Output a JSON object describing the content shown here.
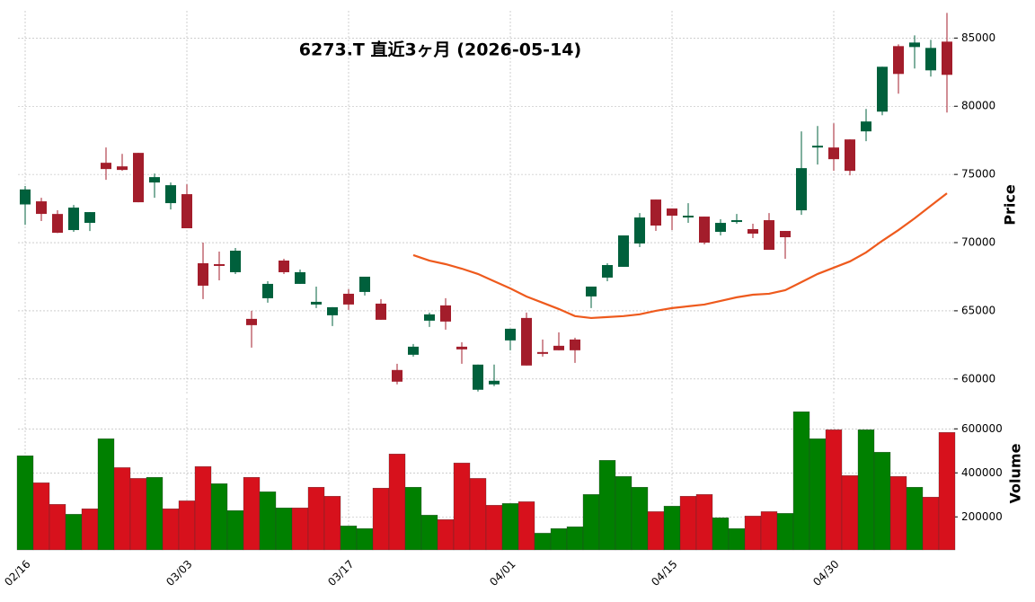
{
  "chart_data": {
    "type": "candlestick",
    "title": "6273.T  直近3ヶ月  (2026-05-14)",
    "categories": [
      "02/16",
      null,
      null,
      null,
      null,
      null,
      null,
      null,
      null,
      null,
      "03/03",
      null,
      null,
      null,
      null,
      null,
      null,
      null,
      null,
      null,
      "03/17",
      null,
      null,
      null,
      null,
      null,
      null,
      null,
      null,
      null,
      "04/01",
      null,
      null,
      null,
      null,
      null,
      null,
      null,
      null,
      null,
      "04/15",
      null,
      null,
      null,
      null,
      null,
      null,
      null,
      null,
      null,
      "04/30",
      null,
      null,
      null,
      null,
      null,
      null,
      null
    ],
    "open": [
      72800,
      73026,
      72100,
      70921,
      71447,
      75855,
      75590,
      76580,
      74408,
      72895,
      73553,
      68487,
      68420,
      67829,
      64408,
      65921,
      68684,
      66974,
      65461,
      64671,
      66250,
      66382,
      65526,
      60658,
      61776,
      64276,
      65395,
      62368,
      59211,
      59605,
      62829,
      64474,
      61974,
      62434,
      62895,
      66053,
      67434,
      68224,
      69934,
      73158,
      72500,
      71842,
      71908,
      70789,
      71513,
      70987,
      71645,
      70855,
      72368,
      76974,
      76974,
      77566,
      78158,
      79605,
      84408,
      84342,
      82632,
      84737
    ],
    "high": [
      74150,
      73290,
      72370,
      72760,
      72240,
      76974,
      76510,
      76580,
      75066,
      74408,
      74276,
      70000,
      69340,
      69605,
      65000,
      67171,
      68816,
      68026,
      66776,
      65263,
      66579,
      67500,
      65855,
      61118,
      62566,
      64868,
      65921,
      62697,
      61053,
      61053,
      63684,
      64868,
      62895,
      63421,
      63026,
      66776,
      68487,
      70526,
      72171,
      73158,
      72500,
      72895,
      71908,
      71711,
      72105,
      71382,
      72171,
      70855,
      78158,
      78553,
      78750,
      77566,
      79803,
      82895,
      84539,
      85197,
      84868,
      86842
    ],
    "low": [
      71300,
      71579,
      70700,
      70790,
      70850,
      74605,
      75263,
      72960,
      73290,
      72434,
      71053,
      65855,
      67237,
      67697,
      62303,
      65592,
      67697,
      66974,
      65197,
      63882,
      65066,
      66118,
      64342,
      59605,
      61645,
      63816,
      63618,
      61118,
      59079,
      59474,
      62105,
      60987,
      61645,
      62105,
      61184,
      65197,
      67171,
      68224,
      69671,
      70855,
      70921,
      71447,
      69868,
      70526,
      71382,
      70329,
      69474,
      68816,
      72039,
      75724,
      75263,
      74934,
      77434,
      79342,
      80921,
      82763,
      82171,
      79539
    ],
    "close": [
      73900,
      72105,
      70720,
      72566,
      72237,
      75395,
      75330,
      72960,
      74803,
      74210,
      71053,
      66842,
      68290,
      69408,
      63947,
      66974,
      67829,
      67829,
      65658,
      65263,
      65461,
      67500,
      64342,
      59803,
      62368,
      64737,
      64211,
      62171,
      61053,
      59868,
      63684,
      60987,
      61842,
      62105,
      62105,
      66776,
      68355,
      70526,
      71842,
      71250,
      71974,
      71974,
      70000,
      71447,
      71645,
      70658,
      69474,
      70395,
      75461,
      77105,
      76118,
      75263,
      78882,
      82895,
      82368,
      84671,
      84276,
      82303
    ],
    "up_color": "#00603c",
    "down_color": "#a31d2b",
    "ylabel": "Price",
    "ylim": [
      58800,
      87000
    ],
    "yticks": [
      60000,
      65000,
      70000,
      75000,
      80000,
      85000
    ],
    "grid": true,
    "moving_average": {
      "color": "#ee5a1d",
      "values": [
        null,
        null,
        null,
        null,
        null,
        null,
        null,
        null,
        null,
        null,
        null,
        null,
        null,
        null,
        null,
        null,
        null,
        null,
        null,
        null,
        null,
        null,
        null,
        null,
        69080,
        68680,
        68420,
        68090,
        67700,
        67170,
        66640,
        66050,
        65590,
        65130,
        64610,
        64470,
        64540,
        64610,
        64740,
        65000,
        65200,
        65330,
        65460,
        65720,
        65990,
        66180,
        66250,
        66510,
        67100,
        67700,
        68160,
        68620,
        69280,
        70130,
        70920,
        71780,
        72700,
        73620
      ]
    },
    "volume": {
      "ylabel": "Volume",
      "ylim": [
        50000,
        740000
      ],
      "yticks": [
        200000,
        400000,
        600000
      ],
      "values": [
        478000,
        355000,
        257000,
        212000,
        237000,
        555000,
        424000,
        375000,
        380000,
        237000,
        273000,
        429000,
        351000,
        229000,
        380000,
        314000,
        241000,
        241000,
        335000,
        294000,
        159000,
        147000,
        331000,
        486000,
        335000,
        208000,
        188000,
        445000,
        375000,
        253000,
        261000,
        269000,
        126000,
        147000,
        155000,
        302000,
        457000,
        384000,
        335000,
        224000,
        249000,
        294000,
        302000,
        196000,
        147000,
        204000,
        224000,
        216000,
        678000,
        555000,
        596000,
        388000,
        596000,
        494000,
        384000,
        335000,
        290000,
        584000
      ],
      "colors": [
        "#008000",
        "#d7111c",
        "#d7111c",
        "#008000",
        "#d7111c",
        "#008000",
        "#d7111c",
        "#d7111c",
        "#008000",
        "#d7111c",
        "#d7111c",
        "#d7111c",
        "#008000",
        "#008000",
        "#d7111c",
        "#008000",
        "#008000",
        "#d7111c",
        "#d7111c",
        "#d7111c",
        "#008000",
        "#008000",
        "#d7111c",
        "#d7111c",
        "#008000",
        "#008000",
        "#d7111c",
        "#d7111c",
        "#d7111c",
        "#d7111c",
        "#008000",
        "#d7111c",
        "#008000",
        "#008000",
        "#008000",
        "#008000",
        "#008000",
        "#008000",
        "#008000",
        "#d7111c",
        "#008000",
        "#d7111c",
        "#d7111c",
        "#008000",
        "#008000",
        "#d7111c",
        "#d7111c",
        "#008000",
        "#008000",
        "#008000",
        "#d7111c",
        "#d7111c",
        "#008000",
        "#008000",
        "#d7111c",
        "#008000",
        "#d7111c",
        "#d7111c"
      ]
    }
  }
}
